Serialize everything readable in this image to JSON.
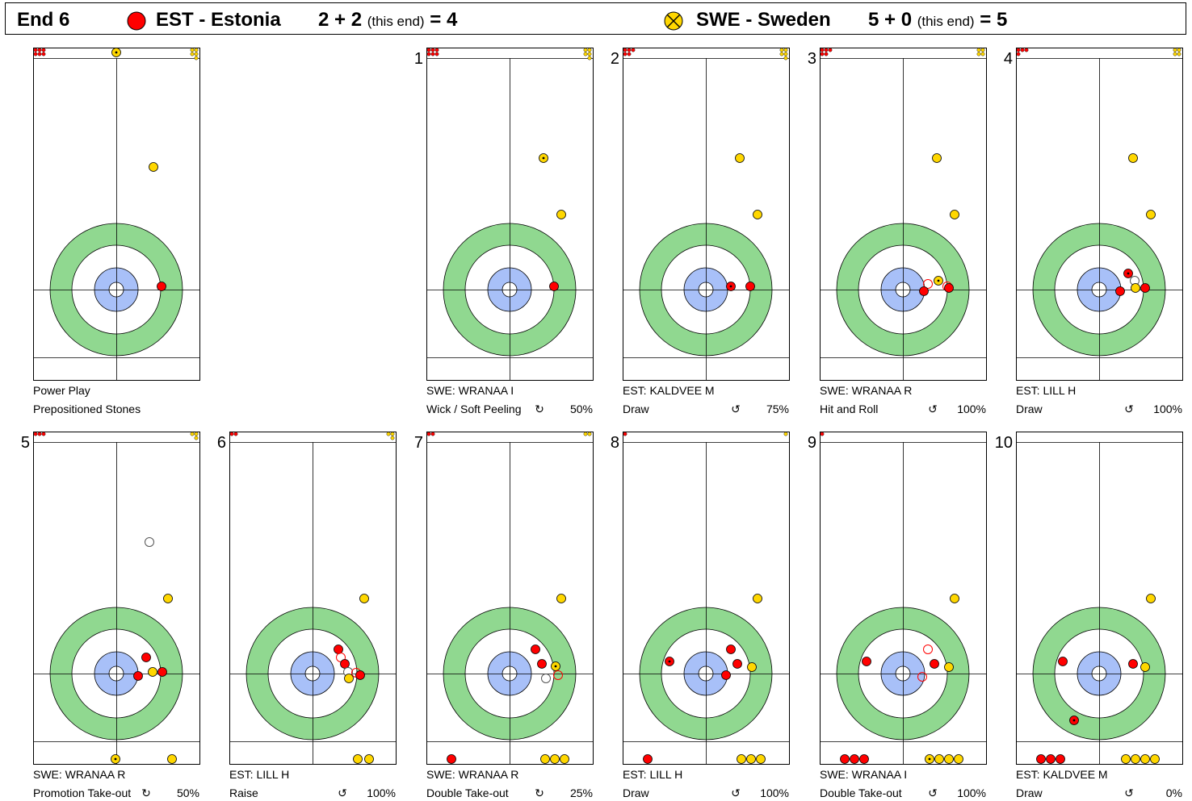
{
  "header": {
    "end_label": "End 6",
    "team1": {
      "name": "EST - Estonia",
      "score": "2 + 2",
      "this_end": "(this end)",
      "total": "= 4",
      "color": "#ff0000"
    },
    "team2": {
      "name": "SWE - Sweden",
      "score": "5 + 0",
      "this_end": "(this end)",
      "total": "= 5",
      "color": "#ffd700"
    }
  },
  "colors": {
    "twelve_foot": "#90d890",
    "four_foot": "#a8c0f8",
    "red_stone": "#ff0000",
    "yellow_stone": "#ffd700"
  },
  "panels": [
    {
      "number": "",
      "line1": "Power Play",
      "line2": "Prepositioned Stones",
      "rot": "",
      "pct": ""
    },
    {
      "number": "1",
      "line1": "SWE: WRANAA I",
      "line2": "Wick / Soft Peeling",
      "rot": "↻",
      "pct": "50%"
    },
    {
      "number": "2",
      "line1": "EST: KALDVEE M",
      "line2": "Draw",
      "rot": "↺",
      "pct": "75%"
    },
    {
      "number": "3",
      "line1": "SWE: WRANAA R",
      "line2": "Hit and Roll",
      "rot": "↺",
      "pct": "100%"
    },
    {
      "number": "4",
      "line1": "EST: LILL H",
      "line2": "Draw",
      "rot": "↺",
      "pct": "100%"
    },
    {
      "number": "5",
      "line1": "SWE: WRANAA R",
      "line2": "Promotion Take-out",
      "rot": "↻",
      "pct": "50%"
    },
    {
      "number": "6",
      "line1": "EST: LILL H",
      "line2": "Raise",
      "rot": "↺",
      "pct": "100%"
    },
    {
      "number": "7",
      "line1": "SWE: WRANAA R",
      "line2": "Double Take-out",
      "rot": "↻",
      "pct": "25%"
    },
    {
      "number": "8",
      "line1": "EST: LILL H",
      "line2": "Draw",
      "rot": "↺",
      "pct": "100%"
    },
    {
      "number": "9",
      "line1": "SWE: WRANAA I",
      "line2": "Double Take-out",
      "rot": "↺",
      "pct": "100%"
    },
    {
      "number": "10",
      "line1": "EST: KALDVEE M",
      "line2": "Draw",
      "rot": "↺",
      "pct": "0%"
    }
  ]
}
